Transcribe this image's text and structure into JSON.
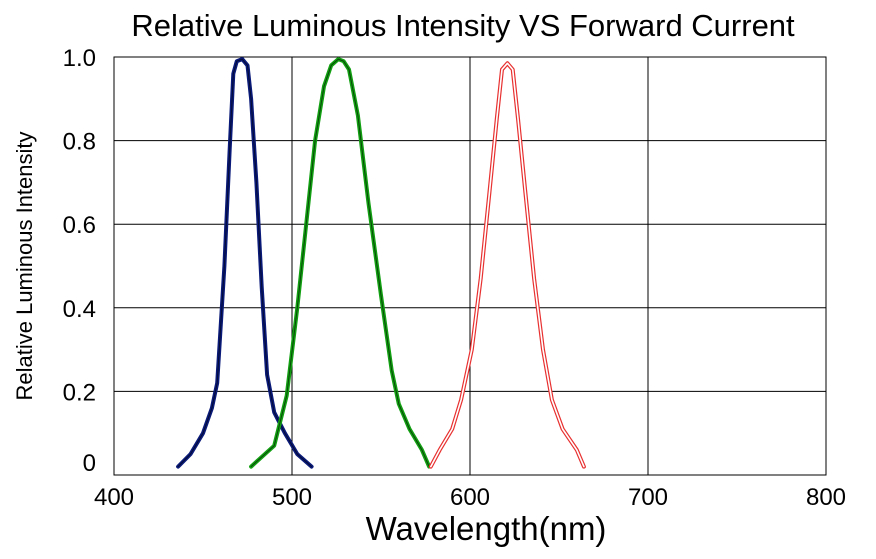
{
  "chart_data": {
    "type": "line",
    "title": "Relative Luminous Intensity VS Forward Current",
    "xlabel": "Wavelength(nm)",
    "ylabel": "Relative Luminous Intensity",
    "xlim": [
      400,
      800
    ],
    "ylim": [
      0,
      1.0
    ],
    "x_ticks": [
      400,
      500,
      600,
      700,
      800
    ],
    "x_tick_labels": [
      "400",
      "500",
      "600",
      "700",
      "800"
    ],
    "y_ticks": [
      0,
      0.2,
      0.4,
      0.6,
      0.8,
      1.0
    ],
    "y_tick_labels": [
      "0",
      "0.2",
      "0.4",
      "0.6",
      "0.8",
      "1.0"
    ],
    "grid": true,
    "series": [
      {
        "color": "#0a1a78",
        "style": "thick",
        "points": [
          [
            436,
            0.02
          ],
          [
            443,
            0.05
          ],
          [
            450,
            0.1
          ],
          [
            455,
            0.16
          ],
          [
            458,
            0.22
          ],
          [
            462,
            0.5
          ],
          [
            465,
            0.78
          ],
          [
            467,
            0.96
          ],
          [
            469,
            0.99
          ],
          [
            472,
            0.995
          ],
          [
            475,
            0.98
          ],
          [
            477,
            0.9
          ],
          [
            480,
            0.7
          ],
          [
            483,
            0.45
          ],
          [
            486,
            0.24
          ],
          [
            490,
            0.15
          ],
          [
            496,
            0.1
          ],
          [
            503,
            0.05
          ],
          [
            511,
            0.02
          ]
        ]
      },
      {
        "color": "#12a012",
        "style": "thick",
        "points": [
          [
            477,
            0.02
          ],
          [
            490,
            0.07
          ],
          [
            497,
            0.19
          ],
          [
            503,
            0.4
          ],
          [
            508,
            0.6
          ],
          [
            513,
            0.8
          ],
          [
            518,
            0.93
          ],
          [
            522,
            0.98
          ],
          [
            526,
            0.995
          ],
          [
            529,
            0.99
          ],
          [
            532,
            0.97
          ],
          [
            537,
            0.86
          ],
          [
            543,
            0.65
          ],
          [
            550,
            0.43
          ],
          [
            556,
            0.25
          ],
          [
            560,
            0.17
          ],
          [
            566,
            0.11
          ],
          [
            573,
            0.06
          ],
          [
            577,
            0.02
          ]
        ]
      },
      {
        "color": "#e83030",
        "style": "double",
        "points": [
          [
            578,
            0.02
          ],
          [
            583,
            0.06
          ],
          [
            590,
            0.11
          ],
          [
            595,
            0.18
          ],
          [
            601,
            0.3
          ],
          [
            606,
            0.47
          ],
          [
            611,
            0.68
          ],
          [
            615,
            0.85
          ],
          [
            618,
            0.97
          ],
          [
            621,
            0.985
          ],
          [
            624,
            0.97
          ],
          [
            627,
            0.85
          ],
          [
            631,
            0.68
          ],
          [
            636,
            0.47
          ],
          [
            641,
            0.3
          ],
          [
            646,
            0.18
          ],
          [
            652,
            0.11
          ],
          [
            660,
            0.06
          ],
          [
            664,
            0.02
          ]
        ]
      }
    ]
  }
}
